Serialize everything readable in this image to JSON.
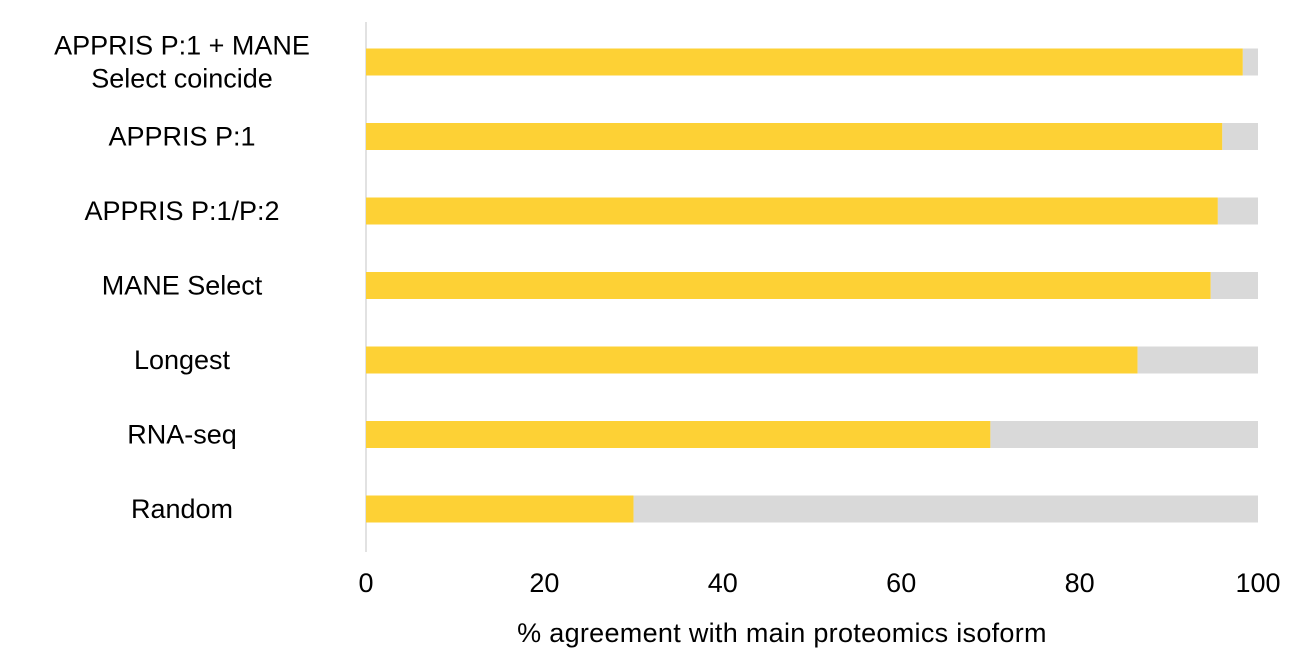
{
  "chart_data": {
    "type": "bar",
    "orientation": "horizontal",
    "stacked": true,
    "categories": [
      [
        "APPRIS P:1 + MANE",
        "Select coincide"
      ],
      [
        "APPRIS P:1"
      ],
      [
        "APPRIS P:1/P:2"
      ],
      [
        "MANE Select"
      ],
      [
        "Longest"
      ],
      [
        "RNA-seq"
      ],
      [
        "Random"
      ]
    ],
    "series": [
      {
        "values": [
          98.3,
          96.0,
          95.5,
          94.7,
          86.5,
          70.0,
          30.0
        ]
      },
      {
        "values": [
          1.7,
          4.0,
          4.5,
          5.3,
          13.5,
          30.0,
          70.0
        ]
      }
    ],
    "colors": [
      "#fdd135",
      "#d9d9d9"
    ],
    "xlabel": "% agreement with main proteomics isoform",
    "ylabel": "",
    "xlim": [
      0,
      100
    ],
    "xticks": [
      "0",
      "20",
      "40",
      "60",
      "80",
      "100"
    ],
    "grid": false,
    "legend": "none"
  }
}
